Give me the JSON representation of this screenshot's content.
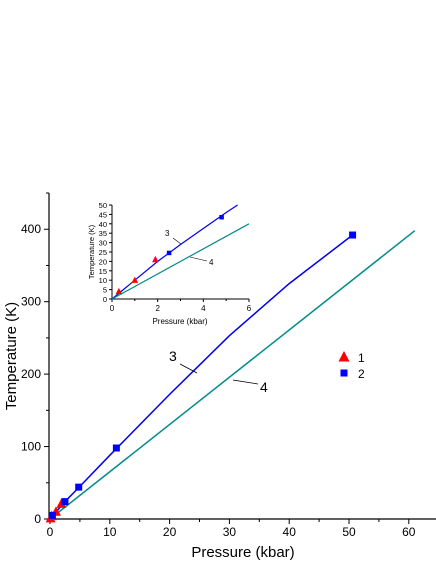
{
  "colors": {
    "series1": "#ff0000",
    "series2": "#0000ff",
    "line3": "#0000ee",
    "line4": "#008b8b",
    "axis": "#000000"
  },
  "chart_data": [
    {
      "type": "scatter",
      "xlabel": "Pressure (kbar)",
      "ylabel": "Temperature (K)",
      "xlim": [
        0,
        65
      ],
      "ylim": [
        0,
        450
      ],
      "x_ticks": [
        0,
        10,
        20,
        30,
        40,
        50,
        60
      ],
      "y_ticks": [
        0,
        100,
        200,
        300,
        400
      ],
      "grid": false,
      "legend_position": "right",
      "series": [
        {
          "name": "1",
          "marker": "triangle",
          "color": "#ff0000",
          "points": [
            [
              0.1,
              1
            ],
            [
              0.3,
              4
            ],
            [
              1.0,
              10
            ],
            [
              1.9,
              21
            ]
          ]
        },
        {
          "name": "2",
          "marker": "square",
          "color": "#0000ff",
          "points": [
            [
              0.4,
              5
            ],
            [
              2.5,
              24
            ],
            [
              4.8,
              44
            ],
            [
              11.1,
              98
            ],
            [
              50.6,
              392
            ]
          ]
        }
      ],
      "lines": [
        {
          "label": "3",
          "color": "#0000ee",
          "points": [
            [
              0,
              0
            ],
            [
              2.5,
              24
            ],
            [
              5,
              45
            ],
            [
              10,
              88
            ],
            [
              20,
              172
            ],
            [
              30,
              253
            ],
            [
              40,
              325
            ],
            [
              50.6,
              392
            ]
          ]
        },
        {
          "label": "4",
          "color": "#008b8b",
          "points": [
            [
              0,
              0
            ],
            [
              61,
              398
            ]
          ]
        }
      ]
    },
    {
      "type": "scatter",
      "xlabel": "Pressure (kbar)",
      "ylabel": "Temperature (K)",
      "xlim": [
        0,
        6
      ],
      "ylim": [
        0,
        50
      ],
      "x_ticks": [
        0,
        2,
        4,
        6
      ],
      "y_ticks": [
        0,
        5,
        10,
        15,
        20,
        25,
        30,
        35,
        40,
        45,
        50
      ],
      "grid": false,
      "series": [
        {
          "name": "1",
          "marker": "triangle",
          "color": "#ff0000",
          "points": [
            [
              0.3,
              4
            ],
            [
              1.0,
              10
            ],
            [
              1.9,
              21
            ]
          ]
        },
        {
          "name": "2",
          "marker": "square",
          "color": "#0000ff",
          "points": [
            [
              2.5,
              24.5
            ],
            [
              4.8,
              43.5
            ]
          ]
        }
      ],
      "lines": [
        {
          "label": "3",
          "color": "#0000ee",
          "points": [
            [
              0,
              0
            ],
            [
              1,
              10
            ],
            [
              2,
              20
            ],
            [
              3,
              29
            ],
            [
              4,
              37.5
            ],
            [
              5,
              46
            ],
            [
              5.5,
              50
            ]
          ]
        },
        {
          "label": "4",
          "color": "#008b8b",
          "points": [
            [
              0,
              0
            ],
            [
              6,
              40
            ]
          ]
        }
      ]
    }
  ]
}
